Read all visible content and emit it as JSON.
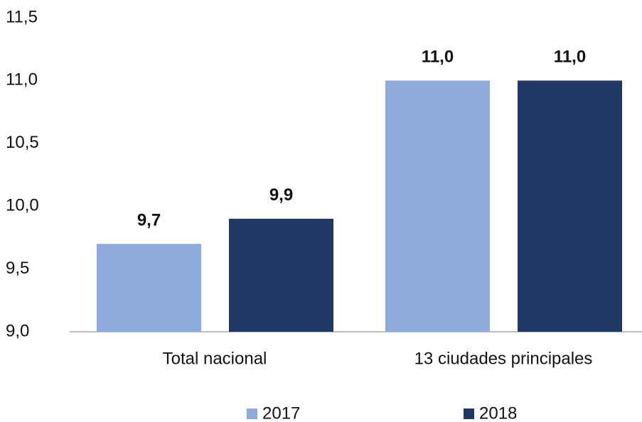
{
  "chart_data": {
    "type": "bar",
    "categories": [
      "Total nacional",
      "13 ciudades principales"
    ],
    "series": [
      {
        "name": "2017",
        "color": "#8faadc",
        "values": [
          9.7,
          11.0
        ],
        "value_labels": [
          "9,7",
          "11,0"
        ]
      },
      {
        "name": "2018",
        "color": "#203864",
        "values": [
          9.9,
          11.0
        ],
        "value_labels": [
          "9,9",
          "11,0"
        ]
      }
    ],
    "ylim": [
      9.0,
      11.5
    ],
    "yticks": [
      {
        "value": 9.0,
        "label": "9,0"
      },
      {
        "value": 9.5,
        "label": "9,5"
      },
      {
        "value": 10.0,
        "label": "10,0"
      },
      {
        "value": 10.5,
        "label": "10,5"
      },
      {
        "value": 11.0,
        "label": "11,0"
      },
      {
        "value": 11.5,
        "label": "11,5"
      }
    ],
    "grid": false,
    "legend": "bottom"
  }
}
